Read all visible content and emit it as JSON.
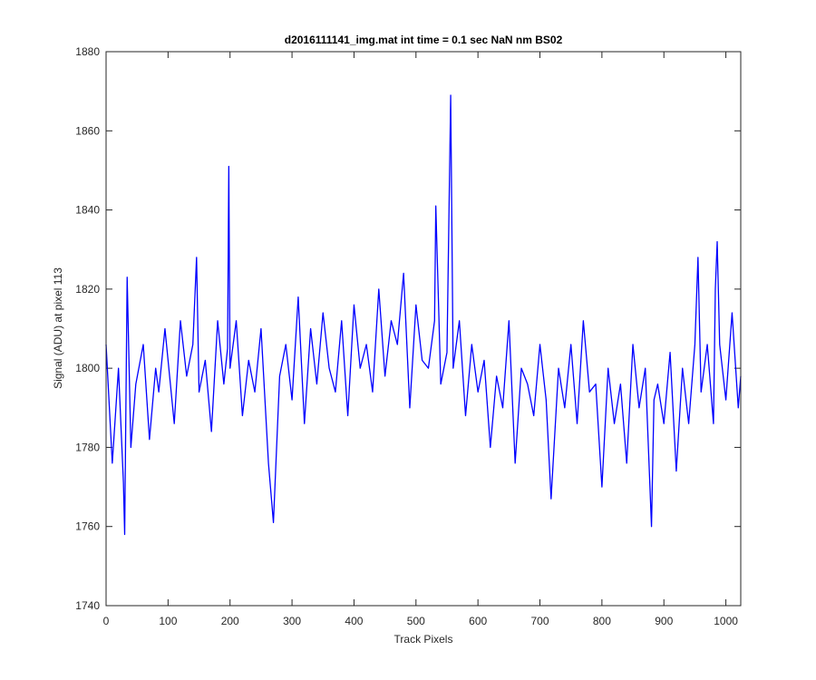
{
  "chart_data": {
    "type": "line",
    "title": "d2016111141_img.mat int time = 0.1 sec  NaN nm BS02",
    "xlabel": "Track Pixels",
    "ylabel": "Signal (ADU) at pixel 113",
    "xlim": [
      0,
      1024
    ],
    "ylim": [
      1740,
      1880
    ],
    "xticks": [
      0,
      100,
      200,
      300,
      400,
      500,
      600,
      700,
      800,
      900,
      1000
    ],
    "yticks": [
      1740,
      1760,
      1780,
      1800,
      1820,
      1840,
      1860,
      1880
    ],
    "grid": false,
    "line_color": "#0000ff",
    "series": [
      {
        "x": [
          0,
          10,
          20,
          28,
          30,
          34,
          40,
          48,
          60,
          70,
          80,
          85,
          95,
          110,
          120,
          130,
          140,
          146,
          150,
          160,
          170,
          180,
          190,
          196,
          198,
          200,
          210,
          220,
          230,
          240,
          250,
          262,
          270,
          280,
          290,
          300,
          310,
          320,
          330,
          340,
          350,
          360,
          370,
          380,
          390,
          400,
          410,
          420,
          430,
          440,
          450,
          460,
          470,
          480,
          490,
          500,
          510,
          520,
          530,
          532,
          540,
          550,
          556,
          560,
          570,
          580,
          590,
          600,
          610,
          620,
          630,
          640,
          650,
          660,
          670,
          680,
          690,
          700,
          710,
          718,
          730,
          740,
          750,
          760,
          770,
          780,
          790,
          800,
          810,
          820,
          830,
          840,
          850,
          860,
          870,
          880,
          884,
          890,
          900,
          910,
          920,
          930,
          940,
          950,
          955,
          960,
          970,
          980,
          983,
          986,
          990,
          1000,
          1010,
          1020,
          1024
        ],
        "y": [
          1806,
          1776,
          1800,
          1771,
          1758,
          1823,
          1780,
          1796,
          1806,
          1782,
          1800,
          1794,
          1810,
          1786,
          1812,
          1798,
          1806,
          1828,
          1794,
          1802,
          1784,
          1812,
          1796,
          1805,
          1851,
          1800,
          1812,
          1788,
          1802,
          1794,
          1810,
          1776,
          1761,
          1798,
          1806,
          1792,
          1818,
          1786,
          1810,
          1796,
          1814,
          1800,
          1794,
          1812,
          1788,
          1816,
          1800,
          1806,
          1794,
          1820,
          1798,
          1812,
          1806,
          1824,
          1790,
          1816,
          1802,
          1800,
          1812,
          1841,
          1796,
          1804,
          1869,
          1800,
          1812,
          1788,
          1806,
          1794,
          1802,
          1780,
          1798,
          1790,
          1812,
          1776,
          1800,
          1796,
          1788,
          1806,
          1792,
          1767,
          1800,
          1790,
          1806,
          1786,
          1812,
          1794,
          1796,
          1770,
          1800,
          1786,
          1796,
          1776,
          1806,
          1790,
          1800,
          1760,
          1792,
          1796,
          1786,
          1804,
          1774,
          1800,
          1786,
          1806,
          1828,
          1794,
          1806,
          1786,
          1820,
          1832,
          1806,
          1792,
          1814,
          1790,
          1798
        ]
      }
    ]
  }
}
